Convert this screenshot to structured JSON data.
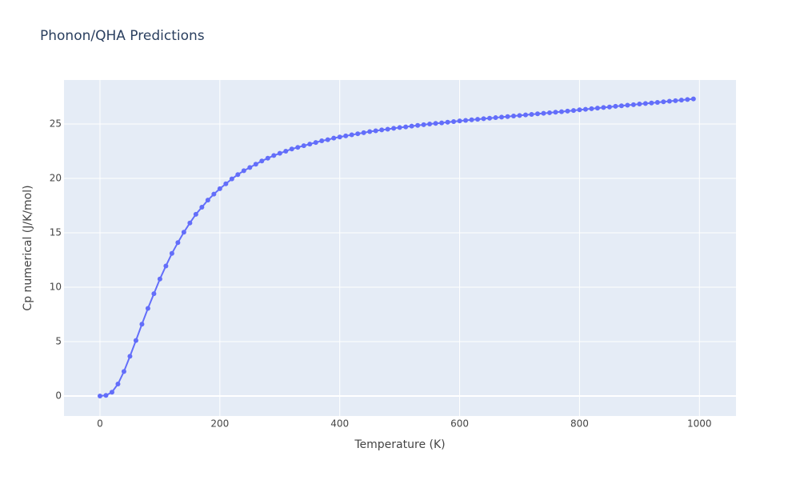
{
  "chart_data": {
    "type": "line",
    "title": "Phonon/QHA Predictions",
    "x_label": "Temperature (K)",
    "y_label": "Cp numerical (J/K/mol)",
    "x": [
      0,
      10,
      20,
      30,
      40,
      50,
      60,
      70,
      80,
      90,
      100,
      110,
      120,
      130,
      140,
      150,
      160,
      170,
      180,
      190,
      200,
      210,
      220,
      230,
      240,
      250,
      260,
      270,
      280,
      290,
      300,
      310,
      320,
      330,
      340,
      350,
      360,
      370,
      380,
      390,
      400,
      410,
      420,
      430,
      440,
      450,
      460,
      470,
      480,
      490,
      500,
      510,
      520,
      530,
      540,
      550,
      560,
      570,
      580,
      590,
      600,
      610,
      620,
      630,
      640,
      650,
      660,
      670,
      680,
      690,
      700,
      710,
      720,
      730,
      740,
      750,
      760,
      770,
      780,
      790,
      800,
      810,
      820,
      830,
      840,
      850,
      860,
      870,
      880,
      890,
      900,
      910,
      920,
      930,
      940,
      950,
      960,
      970,
      980,
      990
    ],
    "series": [
      {
        "color": "#636efa",
        "values": [
          0,
          0.05,
          0.35,
          1.1,
          2.25,
          3.65,
          5.1,
          6.6,
          8.05,
          9.4,
          10.75,
          11.95,
          13.1,
          14.1,
          15.05,
          15.9,
          16.7,
          17.35,
          18.0,
          18.55,
          19.05,
          19.5,
          19.95,
          20.35,
          20.7,
          21.0,
          21.3,
          21.6,
          21.85,
          22.1,
          22.3,
          22.5,
          22.7,
          22.85,
          23.0,
          23.15,
          23.3,
          23.45,
          23.55,
          23.7,
          23.8,
          23.9,
          24.0,
          24.1,
          24.2,
          24.3,
          24.37,
          24.45,
          24.52,
          24.6,
          24.67,
          24.73,
          24.8,
          24.87,
          24.93,
          25.0,
          25.05,
          25.1,
          25.16,
          25.22,
          25.28,
          25.33,
          25.38,
          25.43,
          25.48,
          25.53,
          25.58,
          25.63,
          25.68,
          25.73,
          25.78,
          25.83,
          25.88,
          25.93,
          25.98,
          26.03,
          26.08,
          26.13,
          26.18,
          26.24,
          26.3,
          26.35,
          26.4,
          26.46,
          26.51,
          26.56,
          26.62,
          26.67,
          26.72,
          26.77,
          26.83,
          26.88,
          26.93,
          26.98,
          27.04,
          27.09,
          27.14,
          27.19,
          27.25,
          27.3
        ]
      }
    ],
    "xlim": [
      -60,
      1061
    ],
    "ylim": [
      -1.84,
      29.04
    ],
    "xticks": [
      0,
      200,
      400,
      600,
      800,
      1000
    ],
    "yticks": [
      0,
      5,
      10,
      15,
      20,
      25
    ],
    "grid": true
  }
}
